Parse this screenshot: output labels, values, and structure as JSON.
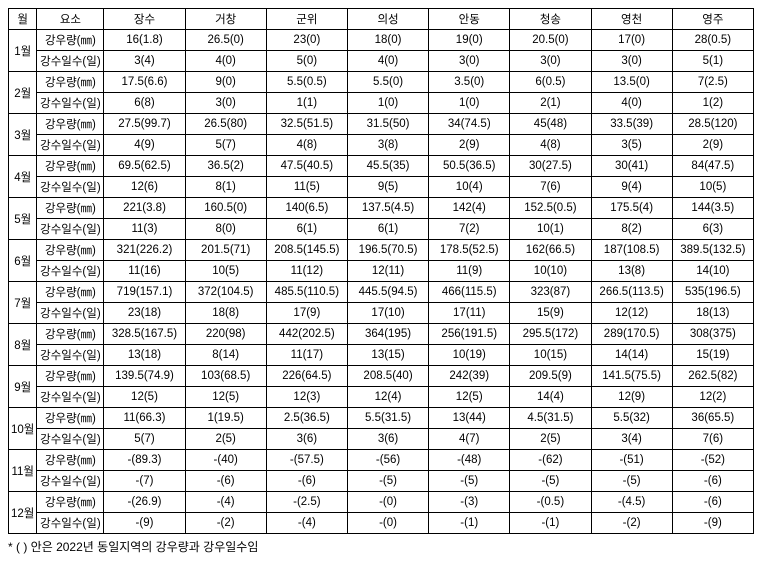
{
  "headers": {
    "month": "월",
    "element": "요소",
    "regions": [
      "장수",
      "거창",
      "군위",
      "의성",
      "안동",
      "청송",
      "영천",
      "영주"
    ]
  },
  "row_labels": {
    "rain": "강우량(㎜)",
    "days": "강수일수(일)"
  },
  "months": [
    {
      "label": "1월",
      "rain": [
        "16(1.8)",
        "26.5(0)",
        "23(0)",
        "18(0)",
        "19(0)",
        "20.5(0)",
        "17(0)",
        "28(0.5)"
      ],
      "days": [
        "3(4)",
        "4(0)",
        "5(0)",
        "4(0)",
        "3(0)",
        "3(0)",
        "3(0)",
        "5(1)"
      ]
    },
    {
      "label": "2월",
      "rain": [
        "17.5(6.6)",
        "9(0)",
        "5.5(0.5)",
        "5.5(0)",
        "3.5(0)",
        "6(0.5)",
        "13.5(0)",
        "7(2.5)"
      ],
      "days": [
        "6(8)",
        "3(0)",
        "1(1)",
        "1(0)",
        "1(0)",
        "2(1)",
        "4(0)",
        "1(2)"
      ]
    },
    {
      "label": "3월",
      "rain": [
        "27.5(99.7)",
        "26.5(80)",
        "32.5(51.5)",
        "31.5(50)",
        "34(74.5)",
        "45(48)",
        "33.5(39)",
        "28.5(120)"
      ],
      "days": [
        "4(9)",
        "5(7)",
        "4(8)",
        "3(8)",
        "2(9)",
        "4(8)",
        "3(5)",
        "2(9)"
      ]
    },
    {
      "label": "4월",
      "rain": [
        "69.5(62.5)",
        "36.5(2)",
        "47.5(40.5)",
        "45.5(35)",
        "50.5(36.5)",
        "30(27.5)",
        "30(41)",
        "84(47.5)"
      ],
      "days": [
        "12(6)",
        "8(1)",
        "11(5)",
        "9(5)",
        "10(4)",
        "7(6)",
        "9(4)",
        "10(5)"
      ]
    },
    {
      "label": "5월",
      "rain": [
        "221(3.8)",
        "160.5(0)",
        "140(6.5)",
        "137.5(4.5)",
        "142(4)",
        "152.5(0.5)",
        "175.5(4)",
        "144(3.5)"
      ],
      "days": [
        "11(3)",
        "8(0)",
        "6(1)",
        "6(1)",
        "7(2)",
        "10(1)",
        "8(2)",
        "6(3)"
      ]
    },
    {
      "label": "6월",
      "rain": [
        "321(226.2)",
        "201.5(71)",
        "208.5(145.5)",
        "196.5(70.5)",
        "178.5(52.5)",
        "162(66.5)",
        "187(108.5)",
        "389.5(132.5)"
      ],
      "days": [
        "11(16)",
        "10(5)",
        "11(12)",
        "12(11)",
        "11(9)",
        "10(10)",
        "13(8)",
        "14(10)"
      ]
    },
    {
      "label": "7월",
      "rain": [
        "719(157.1)",
        "372(104.5)",
        "485.5(110.5)",
        "445.5(94.5)",
        "466(115.5)",
        "323(87)",
        "266.5(113.5)",
        "535(196.5)"
      ],
      "days": [
        "23(18)",
        "18(8)",
        "17(9)",
        "17(10)",
        "17(11)",
        "15(9)",
        "12(12)",
        "18(13)"
      ]
    },
    {
      "label": "8월",
      "rain": [
        "328.5(167.5)",
        "220(98)",
        "442(202.5)",
        "364(195)",
        "256(191.5)",
        "295.5(172)",
        "289(170.5)",
        "308(375)"
      ],
      "days": [
        "13(18)",
        "8(14)",
        "11(17)",
        "13(15)",
        "10(19)",
        "10(15)",
        "14(14)",
        "15(19)"
      ]
    },
    {
      "label": "9월",
      "rain": [
        "139.5(74.9)",
        "103(68.5)",
        "226(64.5)",
        "208.5(40)",
        "242(39)",
        "209.5(9)",
        "141.5(75.5)",
        "262.5(82)"
      ],
      "days": [
        "12(5)",
        "12(5)",
        "12(3)",
        "12(4)",
        "12(5)",
        "14(4)",
        "12(9)",
        "12(2)"
      ]
    },
    {
      "label": "10월",
      "rain": [
        "11(66.3)",
        "1(19.5)",
        "2.5(36.5)",
        "5.5(31.5)",
        "13(44)",
        "4.5(31.5)",
        "5.5(32)",
        "36(65.5)"
      ],
      "days": [
        "5(7)",
        "2(5)",
        "3(6)",
        "3(6)",
        "4(7)",
        "2(5)",
        "3(4)",
        "7(6)"
      ]
    },
    {
      "label": "11월",
      "rain": [
        "-(89.3)",
        "-(40)",
        "-(57.5)",
        "-(56)",
        "-(48)",
        "-(62)",
        "-(51)",
        "-(52)"
      ],
      "days": [
        "-(7)",
        "-(6)",
        "-(6)",
        "-(5)",
        "-(5)",
        "-(5)",
        "-(5)",
        "-(6)"
      ]
    },
    {
      "label": "12월",
      "rain": [
        "-(26.9)",
        "-(4)",
        "-(2.5)",
        "-(0)",
        "-(3)",
        "-(0.5)",
        "-(4.5)",
        "-(6)"
      ],
      "days": [
        "-(9)",
        "-(2)",
        "-(4)",
        "-(0)",
        "-(1)",
        "-(1)",
        "-(2)",
        "-(9)"
      ]
    }
  ],
  "footnote": "* (  ) 안은 2022년 동일지역의 강우량과 강우일수임"
}
